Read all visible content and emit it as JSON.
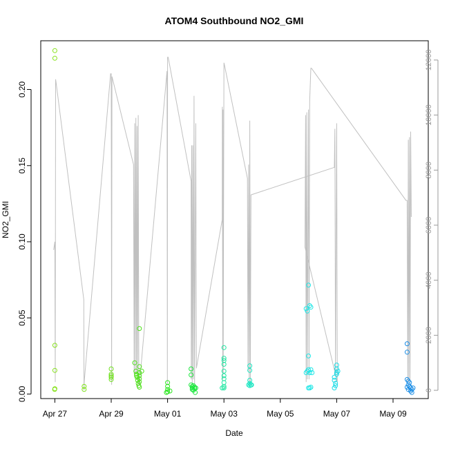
{
  "chart_data": {
    "type": "scatter",
    "title": "ATOM4 Southbound NO2_GMI",
    "xlabel": "Date",
    "ylabel": "NO2_GMI",
    "ylim": [
      -0.003,
      0.232
    ],
    "xlim": [
      "2018-04-26 12:00",
      "2018-05-10 06:00"
    ],
    "right_axis": {
      "ylim": [
        -300,
        12700
      ],
      "ticks": [
        0,
        2000,
        4000,
        6000,
        8000,
        10000,
        12000
      ]
    },
    "y_ticks": [
      0.0,
      0.05,
      0.1,
      0.15,
      0.2
    ],
    "y_tick_labels": [
      "0.00",
      "0.05",
      "0.10",
      "0.15",
      "0.20"
    ],
    "x_ticks": [
      "2018-04-27",
      "2018-04-29",
      "2018-05-01",
      "2018-05-03",
      "2018-05-05",
      "2018-05-07",
      "2018-05-09"
    ],
    "x_tick_labels": [
      "Apr 27",
      "Apr 29",
      "May 01",
      "May 03",
      "May 05",
      "May 07",
      "May 09"
    ],
    "grid": false,
    "colors": {
      "axis": "#000000",
      "right_axis": "#999999",
      "altitude_line": "#c0c0c0"
    },
    "points": [
      [
        "2018-04-27 00:00",
        0.2255,
        "#86e21a"
      ],
      [
        "2018-04-27 00:00",
        0.2205,
        "#86e21a"
      ],
      [
        "2018-04-27 00:00",
        0.032,
        "#86e21a"
      ],
      [
        "2018-04-27 00:00",
        0.0155,
        "#86e21a"
      ],
      [
        "2018-04-26 23:50",
        0.003,
        "#86e21a"
      ],
      [
        "2018-04-27 00:00",
        0.0035,
        "#86e21a"
      ],
      [
        "2018-04-28 00:55",
        0.005,
        "#7ee21a"
      ],
      [
        "2018-04-28 00:55",
        0.003,
        "#7ee21a"
      ],
      [
        "2018-04-29 00:00",
        0.0165,
        "#6ee01a"
      ],
      [
        "2018-04-29 00:00",
        0.013,
        "#6ee01a"
      ],
      [
        "2018-04-29 00:00",
        0.011,
        "#6ee01a"
      ],
      [
        "2018-04-29 00:00",
        0.0095,
        "#6ee01a"
      ],
      [
        "2018-04-29 00:00",
        0.012,
        "#6ee01a"
      ],
      [
        "2018-04-29 20:00",
        0.0205,
        "#4ee01a"
      ],
      [
        "2018-04-29 21:00",
        0.015,
        "#4ee01a"
      ],
      [
        "2018-04-29 21:30",
        0.013,
        "#4ee01a"
      ],
      [
        "2018-04-29 22:00",
        0.011,
        "#4ee01a"
      ],
      [
        "2018-04-29 22:30",
        0.009,
        "#4ee01a"
      ],
      [
        "2018-04-29 23:00",
        0.007,
        "#4ee01a"
      ],
      [
        "2018-04-29 23:30",
        0.0055,
        "#4ee01a"
      ],
      [
        "2018-04-30 00:00",
        0.0045,
        "#4ee01a"
      ],
      [
        "2018-04-30 00:00",
        0.018,
        "#4ee01a"
      ],
      [
        "2018-04-30 00:00",
        0.014,
        "#4ee01a"
      ],
      [
        "2018-04-30 00:00",
        0.012,
        "#4ee01a"
      ],
      [
        "2018-04-30 00:00",
        0.01,
        "#4ee01a"
      ],
      [
        "2018-04-30 00:00",
        0.008,
        "#4ee01a"
      ],
      [
        "2018-04-30 00:00",
        0.043,
        "#4ee01a"
      ],
      [
        "2018-04-30 02:00",
        0.015,
        "#4ee01a"
      ],
      [
        "2018-04-29 21:30",
        0.012,
        "#4ee01a"
      ],
      [
        "2018-05-01 00:00",
        0.0075,
        "#28e61c"
      ],
      [
        "2018-05-01 00:00",
        0.005,
        "#28e61c"
      ],
      [
        "2018-05-01 00:00",
        0.003,
        "#28e61c"
      ],
      [
        "2018-05-01 00:00",
        0.0015,
        "#28e61c"
      ],
      [
        "2018-04-30 23:00",
        0.001,
        "#28e61c"
      ],
      [
        "2018-05-01 02:00",
        0.002,
        "#28e61c"
      ],
      [
        "2018-05-01 20:00",
        0.0165,
        "#18e63a"
      ],
      [
        "2018-05-01 20:00",
        0.0125,
        "#18e63a"
      ],
      [
        "2018-05-01 20:00",
        0.006,
        "#18e63a"
      ],
      [
        "2018-05-01 21:00",
        0.005,
        "#18e63a"
      ],
      [
        "2018-05-01 21:00",
        0.004,
        "#18e63a"
      ],
      [
        "2018-05-01 21:00",
        0.003,
        "#18e63a"
      ],
      [
        "2018-05-01 22:00",
        0.0025,
        "#18e63a"
      ],
      [
        "2018-05-01 22:00",
        0.0055,
        "#18e63a"
      ],
      [
        "2018-05-01 23:00",
        0.0045,
        "#18e63a"
      ],
      [
        "2018-05-01 23:00",
        0.0035,
        "#18e63a"
      ],
      [
        "2018-05-01 23:30",
        0.001,
        "#18e63a"
      ],
      [
        "2018-05-02 00:00",
        0.004,
        "#18e63a"
      ],
      [
        "2018-05-03 00:00",
        0.0305,
        "#1ce6a0"
      ],
      [
        "2018-05-03 00:00",
        0.0235,
        "#1ce6a0"
      ],
      [
        "2018-05-03 00:00",
        0.022,
        "#1ce6a0"
      ],
      [
        "2018-05-03 00:00",
        0.0195,
        "#1ce6a0"
      ],
      [
        "2018-05-03 00:00",
        0.015,
        "#1ce6a0"
      ],
      [
        "2018-05-03 00:00",
        0.012,
        "#1ce6a0"
      ],
      [
        "2018-05-03 00:00",
        0.01,
        "#1ce6a0"
      ],
      [
        "2018-05-03 00:00",
        0.0075,
        "#1ce6a0"
      ],
      [
        "2018-05-03 00:00",
        0.005,
        "#1ce6a0"
      ],
      [
        "2018-05-03 00:00",
        0.004,
        "#1ce6a0"
      ],
      [
        "2018-05-02 22:30",
        0.004,
        "#1ce6a0"
      ],
      [
        "2018-05-03 22:00",
        0.0185,
        "#1ce6c2"
      ],
      [
        "2018-05-03 22:00",
        0.0155,
        "#1ce6c2"
      ],
      [
        "2018-05-03 22:00",
        0.009,
        "#1ce6c2"
      ],
      [
        "2018-05-03 22:00",
        0.007,
        "#1ce6c2"
      ],
      [
        "2018-05-03 22:00",
        0.0055,
        "#1ce6c2"
      ],
      [
        "2018-05-03 23:00",
        0.006,
        "#1ce6c2"
      ],
      [
        "2018-05-03 23:30",
        0.006,
        "#1ce6c2"
      ],
      [
        "2018-05-03 21:00",
        0.006,
        "#1ce6c2"
      ],
      [
        "2018-05-06 00:00",
        0.0715,
        "#1ce6e6"
      ],
      [
        "2018-05-06 02:00",
        0.057,
        "#1ce6e6"
      ],
      [
        "2018-05-05 22:00",
        0.056,
        "#1ce6e6"
      ],
      [
        "2018-05-05 23:00",
        0.0545,
        "#1ce6e6"
      ],
      [
        "2018-05-06 01:00",
        0.058,
        "#1ce6e6"
      ],
      [
        "2018-05-06 00:00",
        0.025,
        "#1ce6e6"
      ],
      [
        "2018-05-06 00:00",
        0.016,
        "#1ce6e6"
      ],
      [
        "2018-05-05 22:00",
        0.014,
        "#1ce6e6"
      ],
      [
        "2018-05-05 23:00",
        0.015,
        "#1ce6e6"
      ],
      [
        "2018-05-06 01:00",
        0.014,
        "#1ce6e6"
      ],
      [
        "2018-05-06 02:00",
        0.016,
        "#1ce6e6"
      ],
      [
        "2018-05-06 03:00",
        0.014,
        "#1ce6e6"
      ],
      [
        "2018-05-06 00:00",
        0.004,
        "#1ce6e6"
      ],
      [
        "2018-05-06 01:00",
        0.004,
        "#1ce6e6"
      ],
      [
        "2018-05-06 02:00",
        0.0045,
        "#1ce6e6"
      ],
      [
        "2018-05-07 00:00",
        0.019,
        "#1cdce6"
      ],
      [
        "2018-05-07 00:00",
        0.0165,
        "#1cdce6"
      ],
      [
        "2018-05-07 00:00",
        0.014,
        "#1cdce6"
      ],
      [
        "2018-05-07 00:00",
        0.013,
        "#1cdce6"
      ],
      [
        "2018-05-06 22:00",
        0.011,
        "#1cdce6"
      ],
      [
        "2018-05-06 22:00",
        0.009,
        "#1cdce6"
      ],
      [
        "2018-05-06 23:00",
        0.007,
        "#1cdce6"
      ],
      [
        "2018-05-06 23:00",
        0.0055,
        "#1cdce6"
      ],
      [
        "2018-05-06 22:00",
        0.004,
        "#1cdce6"
      ],
      [
        "2018-05-07 01:00",
        0.015,
        "#1cdce6"
      ],
      [
        "2018-05-09 12:00",
        0.033,
        "#1c8ee6"
      ],
      [
        "2018-05-09 12:00",
        0.0275,
        "#1c8ee6"
      ],
      [
        "2018-05-09 12:00",
        0.0095,
        "#1c8ee6"
      ],
      [
        "2018-05-09 13:00",
        0.0085,
        "#1c8ee6"
      ],
      [
        "2018-05-09 14:00",
        0.0075,
        "#1c8ee6"
      ],
      [
        "2018-05-09 13:00",
        0.006,
        "#1c8ee6"
      ],
      [
        "2018-05-09 14:00",
        0.005,
        "#1c8ee6"
      ],
      [
        "2018-05-09 15:00",
        0.004,
        "#1c8ee6"
      ],
      [
        "2018-05-09 16:00",
        0.003,
        "#1c8ee6"
      ],
      [
        "2018-05-09 15:00",
        0.002,
        "#1c8ee6"
      ],
      [
        "2018-05-09 16:00",
        0.001,
        "#1c8ee6"
      ],
      [
        "2018-05-09 12:00",
        0.0045,
        "#1c8ee6"
      ],
      [
        "2018-05-09 17:00",
        0.004,
        "#1c8ee6"
      ],
      [
        "2018-05-09 13:00",
        0.003,
        "#1c8ee6"
      ]
    ],
    "altitude_series": [
      [
        "2018-04-26 23:00",
        5100
      ],
      [
        "2018-04-27 00:00",
        5400
      ],
      [
        "2018-04-27 00:20",
        300
      ],
      [
        "2018-04-27 00:40",
        11300
      ],
      [
        "2018-04-27 01:00",
        11200
      ],
      [
        "2018-04-28 00:40",
        3300
      ],
      [
        "2018-04-28 00:50",
        0
      ],
      [
        "2018-04-28 01:00",
        300
      ],
      [
        "2018-04-28 23:30",
        11500
      ],
      [
        "2018-04-29 00:00",
        11500
      ],
      [
        "2018-04-29 00:20",
        200
      ],
      [
        "2018-04-29 00:40",
        11400
      ],
      [
        "2018-04-29 19:00",
        8200
      ],
      [
        "2018-04-29 19:30",
        600
      ],
      [
        "2018-04-29 20:00",
        9700
      ],
      [
        "2018-04-29 20:30",
        600
      ],
      [
        "2018-04-29 21:00",
        9900
      ],
      [
        "2018-04-29 21:30",
        600
      ],
      [
        "2018-04-29 22:00",
        9600
      ],
      [
        "2018-04-29 22:30",
        600
      ],
      [
        "2018-04-29 23:00",
        10000
      ],
      [
        "2018-04-29 23:30",
        200
      ],
      [
        "2018-04-30 00:00",
        200
      ],
      [
        "2018-04-30 23:30",
        11600
      ],
      [
        "2018-04-30 23:50",
        200
      ],
      [
        "2018-05-01 00:00",
        12100
      ],
      [
        "2018-05-01 00:30",
        12100
      ],
      [
        "2018-05-01 20:00",
        7600
      ],
      [
        "2018-05-01 20:10",
        400
      ],
      [
        "2018-05-01 20:30",
        8900
      ],
      [
        "2018-05-01 21:00",
        200
      ],
      [
        "2018-05-01 21:30",
        8900
      ],
      [
        "2018-05-01 22:00",
        400
      ],
      [
        "2018-05-01 22:30",
        10700
      ],
      [
        "2018-05-01 23:00",
        200
      ],
      [
        "2018-05-02 00:00",
        9700
      ],
      [
        "2018-05-02 00:30",
        800
      ],
      [
        "2018-05-02 22:30",
        6200
      ],
      [
        "2018-05-02 22:40",
        10300
      ],
      [
        "2018-05-02 23:00",
        400
      ],
      [
        "2018-05-02 23:10",
        10200
      ],
      [
        "2018-05-02 23:20",
        600
      ],
      [
        "2018-05-03 00:00",
        11900
      ],
      [
        "2018-05-03 00:30",
        11800
      ],
      [
        "2018-05-03 20:00",
        7700
      ],
      [
        "2018-05-03 20:30",
        700
      ],
      [
        "2018-05-03 21:00",
        8200
      ],
      [
        "2018-05-03 21:30",
        200
      ],
      [
        "2018-05-03 22:00",
        9800
      ],
      [
        "2018-05-03 22:30",
        200
      ],
      [
        "2018-05-03 23:00",
        7100
      ],
      [
        "2018-05-06 22:00",
        8100
      ],
      [
        "2018-05-06 22:30",
        9500
      ],
      [
        "2018-05-06 23:00",
        500
      ],
      [
        "2018-05-07 00:00",
        9700
      ],
      [
        "2018-05-07 00:30",
        300
      ],
      [
        "2018-05-05 21:00",
        5200
      ],
      [
        "2018-05-05 21:30",
        10000
      ],
      [
        "2018-05-05 22:00",
        300
      ],
      [
        "2018-05-05 22:30",
        10100
      ],
      [
        "2018-05-05 23:00",
        400
      ],
      [
        "2018-05-06 00:00",
        10200
      ],
      [
        "2018-05-06 00:30",
        400
      ],
      [
        "2018-05-06 01:00",
        10500
      ],
      [
        "2018-05-06 02:00",
        11700
      ],
      [
        "2018-05-06 02:30",
        11700
      ],
      [
        "2018-05-09 11:00",
        6900
      ],
      [
        "2018-05-09 12:00",
        6900
      ],
      [
        "2018-05-09 12:30",
        300
      ],
      [
        "2018-05-09 13:00",
        9100
      ],
      [
        "2018-05-09 13:30",
        300
      ],
      [
        "2018-05-09 14:00",
        9200
      ],
      [
        "2018-05-09 14:30",
        300
      ],
      [
        "2018-05-09 15:00",
        9400
      ],
      [
        "2018-05-09 15:30",
        6300
      ]
    ]
  }
}
